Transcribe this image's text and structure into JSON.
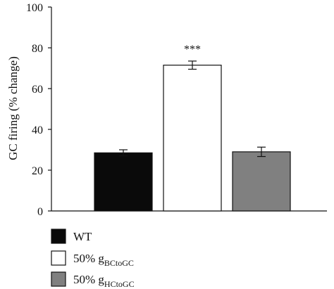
{
  "chart_data": {
    "type": "bar",
    "categories": [
      "WT",
      "50% g_BCtoGC",
      "50% g_HCtoGC"
    ],
    "series": [
      {
        "values": [
          28.5,
          71.5,
          29
        ],
        "errors": [
          1.5,
          2.0,
          2.3
        ],
        "colors": [
          "#0a0a0a",
          "#ffffff",
          "#808080"
        ]
      }
    ],
    "ylabel": "GC firing (% change)",
    "xlabel": "",
    "ylim": [
      0,
      100
    ],
    "yticks": [
      0,
      20,
      40,
      60,
      80,
      100
    ],
    "annotations": [
      {
        "category_index": 1,
        "text": "***"
      }
    ],
    "legend": {
      "placement": "bottom-left",
      "entries": [
        {
          "label": "WT",
          "color": "#0a0a0a"
        },
        {
          "label": "50% g",
          "subscript": "BCtoGC",
          "color": "#ffffff"
        },
        {
          "label": "50% g",
          "subscript": "HCtoGC",
          "color": "#808080"
        }
      ]
    },
    "grid": false
  }
}
